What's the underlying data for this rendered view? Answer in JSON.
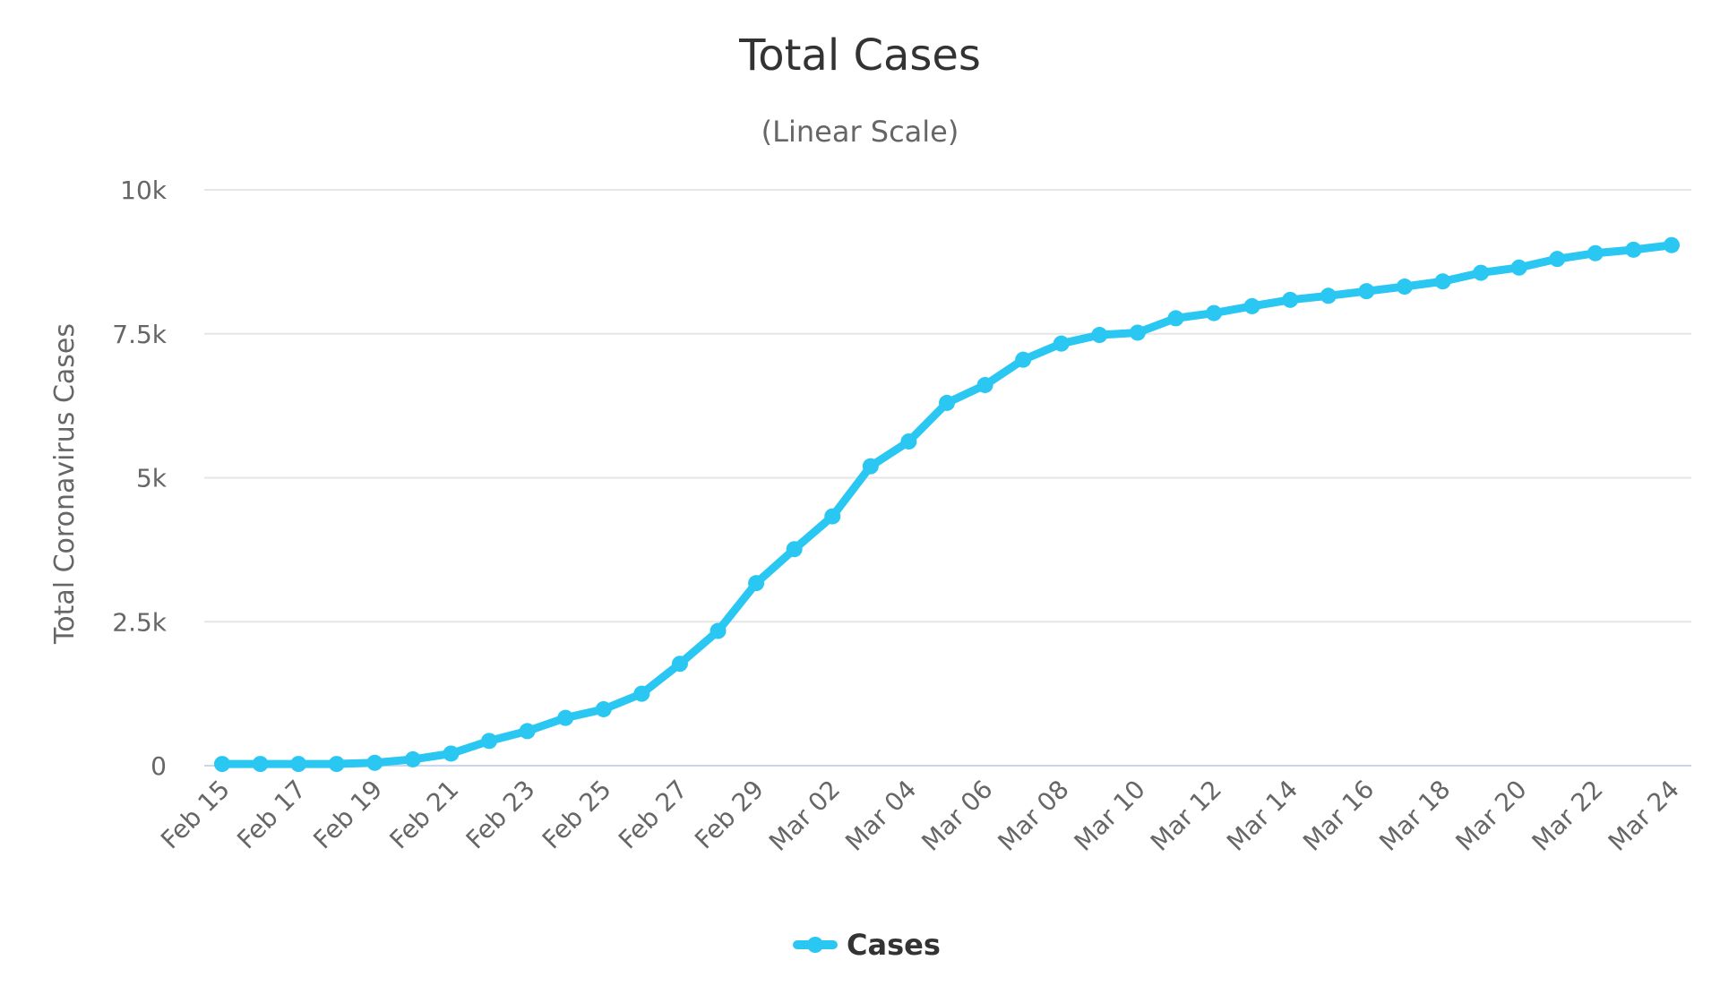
{
  "chart_data": {
    "type": "line",
    "title": "Total Cases",
    "subtitle": "(Linear Scale)",
    "xlabel": "",
    "ylabel": "Total Coronavirus Cases",
    "ylim": [
      0,
      10000
    ],
    "y_ticks": [
      0,
      2500,
      5000,
      7500,
      10000
    ],
    "y_tick_labels": [
      "0",
      "2.5k",
      "5k",
      "7.5k",
      "10k"
    ],
    "x_tick_labels": [
      "Feb 15",
      "Feb 17",
      "Feb 19",
      "Feb 21",
      "Feb 23",
      "Feb 25",
      "Feb 27",
      "Feb 29",
      "Mar 02",
      "Mar 04",
      "Mar 06",
      "Mar 08",
      "Mar 10",
      "Mar 12",
      "Mar 14",
      "Mar 16",
      "Mar 18",
      "Mar 20",
      "Mar 22",
      "Mar 24"
    ],
    "categories": [
      "Feb 15",
      "Feb 16",
      "Feb 17",
      "Feb 18",
      "Feb 19",
      "Feb 20",
      "Feb 21",
      "Feb 22",
      "Feb 23",
      "Feb 24",
      "Feb 25",
      "Feb 26",
      "Feb 27",
      "Feb 28",
      "Feb 29",
      "Mar 01",
      "Mar 02",
      "Mar 03",
      "Mar 04",
      "Mar 05",
      "Mar 06",
      "Mar 07",
      "Mar 08",
      "Mar 09",
      "Mar 10",
      "Mar 11",
      "Mar 12",
      "Mar 13",
      "Mar 14",
      "Mar 15",
      "Mar 16",
      "Mar 17",
      "Mar 18",
      "Mar 19",
      "Mar 20",
      "Mar 21",
      "Mar 22",
      "Mar 23",
      "Mar 24"
    ],
    "grid": true,
    "legend_position": "bottom-center",
    "series": [
      {
        "name": "Cases",
        "color": "#29c7f2",
        "values": [
          30,
          30,
          30,
          30,
          50,
          110,
          210,
          430,
          600,
          830,
          980,
          1250,
          1770,
          2340,
          3170,
          3760,
          4330,
          5200,
          5630,
          6300,
          6610,
          7050,
          7330,
          7480,
          7520,
          7770,
          7860,
          7980,
          8090,
          8160,
          8240,
          8320,
          8410,
          8560,
          8650,
          8800,
          8900,
          8960,
          9040
        ]
      }
    ]
  }
}
